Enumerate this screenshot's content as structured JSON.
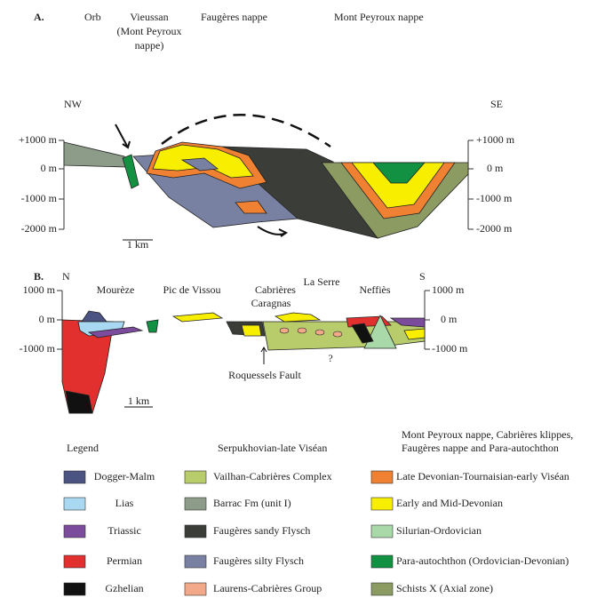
{
  "section_a": {
    "label": "A.",
    "places": {
      "orb": "Orb",
      "vieussan": [
        "Vieussan",
        "(Mont Peyroux",
        "nappe)"
      ],
      "faugeres": "Faugères nappe",
      "mont_peyroux": "Mont Peyroux nappe"
    },
    "left_end": "NW",
    "right_end": "SE",
    "axis_left": [
      "+1000 m",
      "0 m",
      "-1000 m",
      "-2000 m"
    ],
    "axis_right": [
      "+1000 m",
      "0 m",
      "-1000 m",
      "-2000 m"
    ],
    "scale": "1 km"
  },
  "section_b": {
    "label": "B.",
    "left_end": "N",
    "right_end": "S",
    "axis_left": [
      "1000 m",
      "0 m",
      "-1000 m"
    ],
    "axis_right": [
      "1000 m",
      "0 m",
      "-1000 m"
    ],
    "places": {
      "moureze": "Mourèze",
      "pic": "Pic de Vissou",
      "cabrieres": "Cabrières",
      "caragnas": "Caragnas",
      "la_serre": "La Serre",
      "neffies": "Neffiès"
    },
    "fault": "Roquessels Fault",
    "unknown": "?",
    "scale": "1 km"
  },
  "legend": {
    "title": "Legend",
    "columns": [
      {
        "heading": [],
        "items": [
          {
            "label": "Dogger-Malm",
            "color": "#4b5383"
          },
          {
            "label": "Lias",
            "color": "#a9d9f2"
          },
          {
            "label": "Triassic",
            "color": "#7b4b9c"
          },
          {
            "label": "Permian",
            "color": "#e2302f"
          },
          {
            "label": "Gzhelian",
            "color": "#111111"
          }
        ]
      },
      {
        "heading": [
          "Serpukhovian-late Viséan"
        ],
        "items": [
          {
            "label": "Vailhan-Cabrières Complex",
            "color": "#b9cc6b"
          },
          {
            "label": "Barrac Fm (unit I)",
            "color": "#8c9c89"
          },
          {
            "label": "Faugères sandy Flysch",
            "color": "#3b3d39"
          },
          {
            "label": "Faugères silty Flysch",
            "color": "#7881a2"
          },
          {
            "label": "Laurens-Cabrières Group",
            "color": "#f2a98a"
          }
        ]
      },
      {
        "heading": [
          "Mont Peyroux nappe, Cabrières klippes,",
          "Faugères nappe and Para-autochthon"
        ],
        "items": [
          {
            "label": "Late Devonian-Tournaisian-early Viséan",
            "color": "#f08132"
          },
          {
            "label": "Early and Mid-Devonian",
            "color": "#f8ef00"
          },
          {
            "label": "Silurian-Ordovician",
            "color": "#a9d9a9"
          },
          {
            "label": "Para-autochthon (Ordovician-Devonian)",
            "color": "#119141"
          },
          {
            "label": "Schists X (Axial zone)",
            "color": "#8b9b62"
          }
        ]
      }
    ]
  }
}
